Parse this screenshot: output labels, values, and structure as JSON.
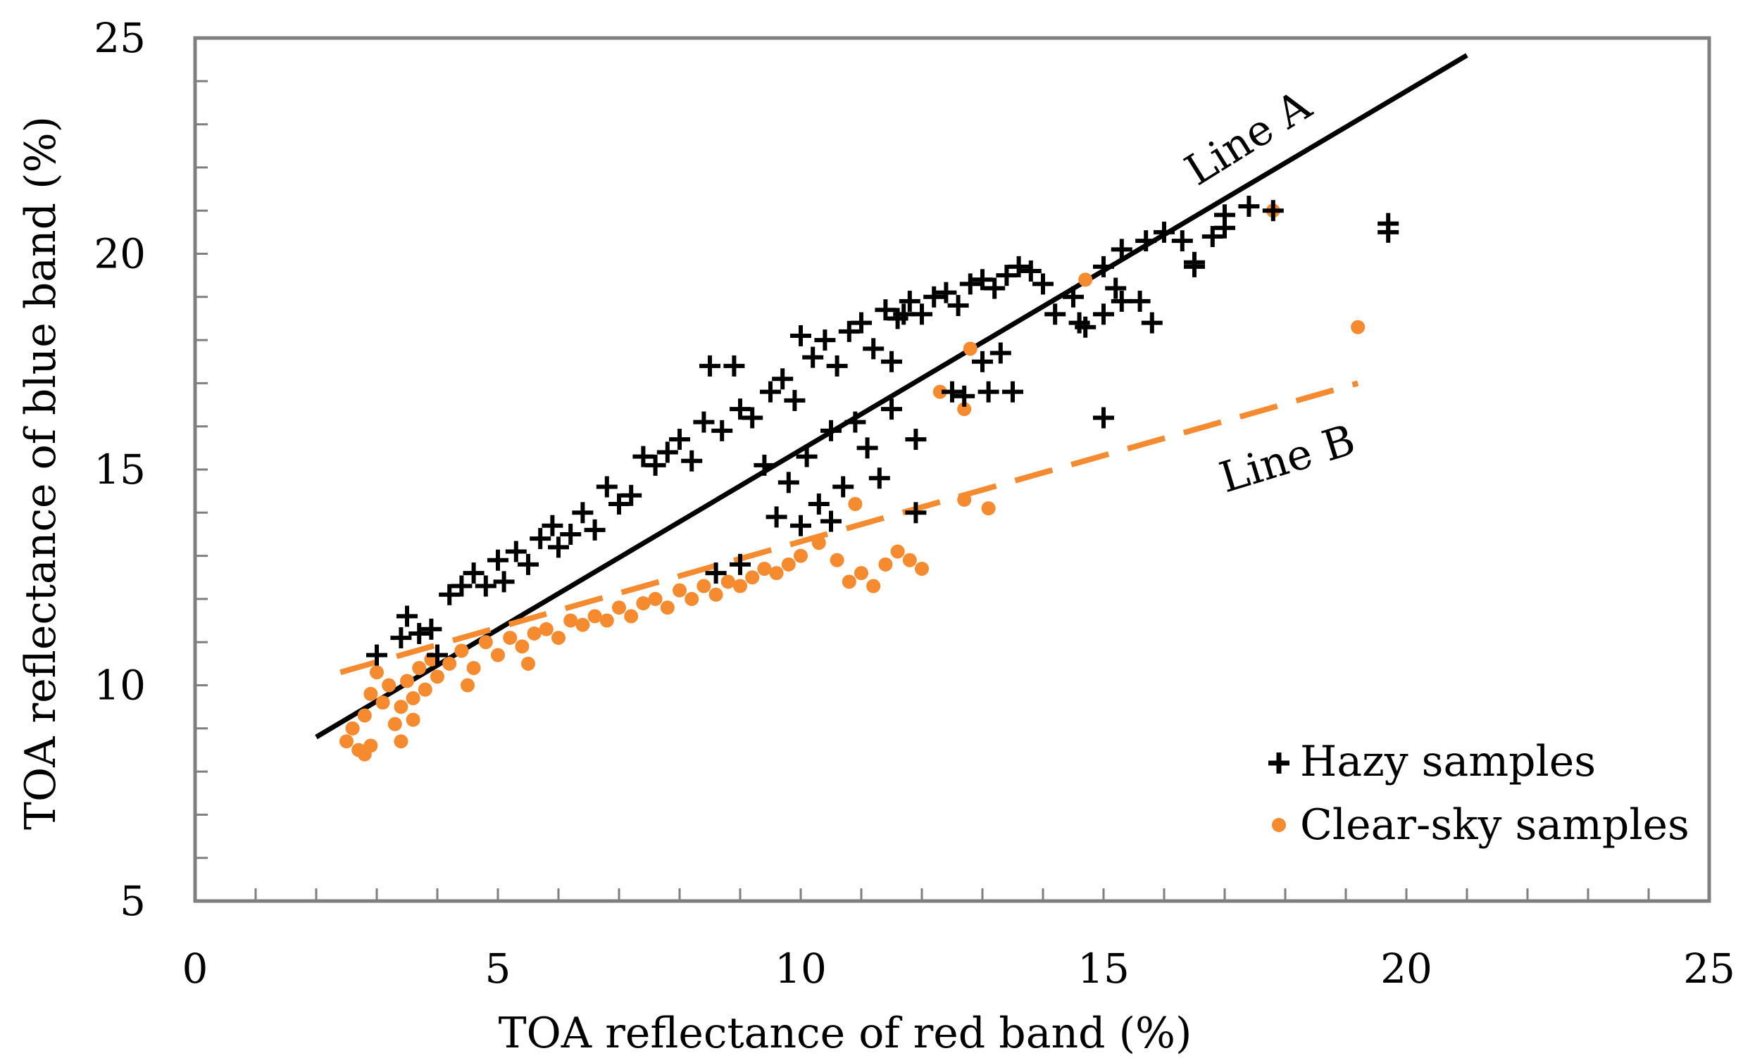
{
  "chart_data": {
    "type": "scatter",
    "title": "",
    "xlabel": "TOA reflectance of red band (%)",
    "ylabel": "TOA reflectance of blue band (%)",
    "xlim": [
      0,
      25
    ],
    "ylim": [
      5,
      25
    ],
    "x_ticks": [
      "0",
      "5",
      "10",
      "15",
      "20",
      "25"
    ],
    "y_ticks": [
      "5",
      "10",
      "15",
      "20",
      "25"
    ],
    "grid": false,
    "legend_position": "bottom-right",
    "series": [
      {
        "name": "Hazy samples",
        "marker": "plus",
        "color": "#000000",
        "points": [
          [
            3.0,
            10.7
          ],
          [
            3.4,
            11.1
          ],
          [
            3.5,
            11.6
          ],
          [
            3.7,
            11.2
          ],
          [
            3.9,
            11.3
          ],
          [
            4.0,
            10.7
          ],
          [
            4.2,
            12.1
          ],
          [
            4.4,
            12.3
          ],
          [
            4.6,
            12.6
          ],
          [
            4.8,
            12.3
          ],
          [
            5.0,
            12.9
          ],
          [
            5.1,
            12.4
          ],
          [
            5.3,
            13.1
          ],
          [
            5.5,
            12.8
          ],
          [
            5.7,
            13.4
          ],
          [
            5.9,
            13.7
          ],
          [
            6.0,
            13.2
          ],
          [
            6.2,
            13.5
          ],
          [
            6.4,
            14.0
          ],
          [
            6.6,
            13.6
          ],
          [
            6.8,
            14.6
          ],
          [
            7.0,
            14.2
          ],
          [
            7.2,
            14.4
          ],
          [
            7.4,
            15.3
          ],
          [
            7.6,
            15.1
          ],
          [
            7.8,
            15.4
          ],
          [
            8.0,
            15.7
          ],
          [
            8.2,
            15.2
          ],
          [
            8.4,
            16.1
          ],
          [
            8.5,
            17.4
          ],
          [
            8.9,
            17.4
          ],
          [
            8.7,
            15.9
          ],
          [
            9.0,
            16.4
          ],
          [
            9.2,
            16.2
          ],
          [
            9.5,
            16.8
          ],
          [
            9.7,
            17.1
          ],
          [
            9.9,
            16.6
          ],
          [
            10.0,
            18.1
          ],
          [
            10.2,
            17.6
          ],
          [
            10.4,
            18.0
          ],
          [
            10.6,
            17.4
          ],
          [
            10.8,
            18.2
          ],
          [
            11.0,
            18.4
          ],
          [
            11.2,
            17.8
          ],
          [
            11.4,
            18.7
          ],
          [
            11.6,
            18.5
          ],
          [
            11.8,
            18.9
          ],
          [
            12.0,
            18.6
          ],
          [
            12.2,
            19.0
          ],
          [
            12.4,
            19.1
          ],
          [
            12.6,
            18.8
          ],
          [
            12.8,
            19.3
          ],
          [
            13.0,
            19.4
          ],
          [
            13.2,
            19.2
          ],
          [
            13.4,
            19.5
          ],
          [
            13.6,
            19.7
          ],
          [
            13.8,
            19.6
          ],
          [
            14.0,
            19.3
          ],
          [
            9.4,
            15.1
          ],
          [
            9.8,
            14.7
          ],
          [
            10.1,
            15.3
          ],
          [
            10.5,
            15.9
          ],
          [
            10.9,
            16.1
          ],
          [
            11.1,
            15.5
          ],
          [
            11.5,
            16.4
          ],
          [
            11.9,
            15.7
          ],
          [
            12.5,
            16.8
          ],
          [
            12.7,
            16.7
          ],
          [
            13.0,
            17.5
          ],
          [
            13.3,
            17.7
          ],
          [
            13.5,
            16.8
          ],
          [
            10.3,
            14.2
          ],
          [
            10.7,
            14.6
          ],
          [
            11.3,
            14.8
          ],
          [
            11.9,
            14.0
          ],
          [
            9.6,
            13.9
          ],
          [
            10.0,
            13.7
          ],
          [
            10.5,
            13.8
          ],
          [
            9.0,
            12.8
          ],
          [
            8.6,
            12.6
          ],
          [
            14.2,
            18.6
          ],
          [
            14.6,
            18.4
          ],
          [
            15.0,
            18.6
          ],
          [
            15.3,
            18.9
          ],
          [
            15.6,
            18.9
          ],
          [
            15.8,
            18.4
          ],
          [
            14.5,
            19.0
          ],
          [
            15.0,
            19.7
          ],
          [
            15.3,
            20.1
          ],
          [
            15.7,
            20.3
          ],
          [
            16.0,
            20.5
          ],
          [
            16.3,
            20.3
          ],
          [
            16.5,
            19.8
          ],
          [
            16.8,
            20.4
          ],
          [
            17.0,
            20.6
          ],
          [
            17.0,
            20.9
          ],
          [
            17.4,
            21.1
          ],
          [
            17.8,
            21.0
          ],
          [
            16.5,
            19.7
          ],
          [
            19.7,
            20.5
          ],
          [
            19.7,
            20.7
          ],
          [
            14.7,
            18.3
          ],
          [
            15.2,
            19.2
          ],
          [
            15.0,
            16.2
          ],
          [
            13.1,
            16.8
          ],
          [
            11.5,
            17.5
          ],
          [
            11.7,
            18.6
          ]
        ]
      },
      {
        "name": "Clear-sky samples",
        "marker": "circle",
        "color": "#F58A2F",
        "points": [
          [
            2.5,
            8.7
          ],
          [
            2.6,
            9.0
          ],
          [
            2.7,
            8.5
          ],
          [
            2.8,
            8.4
          ],
          [
            2.9,
            8.6
          ],
          [
            2.8,
            9.3
          ],
          [
            2.9,
            9.8
          ],
          [
            3.0,
            10.3
          ],
          [
            3.1,
            9.6
          ],
          [
            3.2,
            10.0
          ],
          [
            3.3,
            9.1
          ],
          [
            3.4,
            9.5
          ],
          [
            3.5,
            10.1
          ],
          [
            3.6,
            9.7
          ],
          [
            3.7,
            10.4
          ],
          [
            3.8,
            9.9
          ],
          [
            3.9,
            10.6
          ],
          [
            4.0,
            10.2
          ],
          [
            4.2,
            10.5
          ],
          [
            4.4,
            10.8
          ],
          [
            4.6,
            10.4
          ],
          [
            4.8,
            11.0
          ],
          [
            5.0,
            10.7
          ],
          [
            5.2,
            11.1
          ],
          [
            5.4,
            10.9
          ],
          [
            5.6,
            11.2
          ],
          [
            5.8,
            11.3
          ],
          [
            6.0,
            11.1
          ],
          [
            6.2,
            11.5
          ],
          [
            6.4,
            11.4
          ],
          [
            6.6,
            11.6
          ],
          [
            6.8,
            11.5
          ],
          [
            7.0,
            11.8
          ],
          [
            7.2,
            11.6
          ],
          [
            7.4,
            11.9
          ],
          [
            7.6,
            12.0
          ],
          [
            7.8,
            11.8
          ],
          [
            8.0,
            12.2
          ],
          [
            8.2,
            12.0
          ],
          [
            8.4,
            12.3
          ],
          [
            8.6,
            12.1
          ],
          [
            8.8,
            12.4
          ],
          [
            9.0,
            12.3
          ],
          [
            9.2,
            12.5
          ],
          [
            9.4,
            12.7
          ],
          [
            9.6,
            12.6
          ],
          [
            9.8,
            12.8
          ],
          [
            10.0,
            13.0
          ],
          [
            10.3,
            13.3
          ],
          [
            10.6,
            12.9
          ],
          [
            10.8,
            12.4
          ],
          [
            11.0,
            12.6
          ],
          [
            11.2,
            12.3
          ],
          [
            11.4,
            12.8
          ],
          [
            11.6,
            13.1
          ],
          [
            11.8,
            12.9
          ],
          [
            12.0,
            12.7
          ],
          [
            10.9,
            14.2
          ],
          [
            12.7,
            14.3
          ],
          [
            13.1,
            14.1
          ],
          [
            12.7,
            16.4
          ],
          [
            12.3,
            16.8
          ],
          [
            12.8,
            17.8
          ],
          [
            14.7,
            19.4
          ],
          [
            17.8,
            21.0
          ],
          [
            19.2,
            18.3
          ],
          [
            3.4,
            8.7
          ],
          [
            3.6,
            9.2
          ],
          [
            4.5,
            10.0
          ],
          [
            5.5,
            10.5
          ]
        ]
      }
    ],
    "trend_lines": [
      {
        "label": "Line A",
        "style": "solid",
        "color": "#000000",
        "x": [
          2.0,
          21.0
        ],
        "y": [
          8.8,
          24.6
        ]
      },
      {
        "label": "Line B",
        "style": "dashed",
        "color": "#F58A2F",
        "x": [
          2.4,
          19.2
        ],
        "y": [
          10.3,
          17.0
        ]
      }
    ]
  }
}
